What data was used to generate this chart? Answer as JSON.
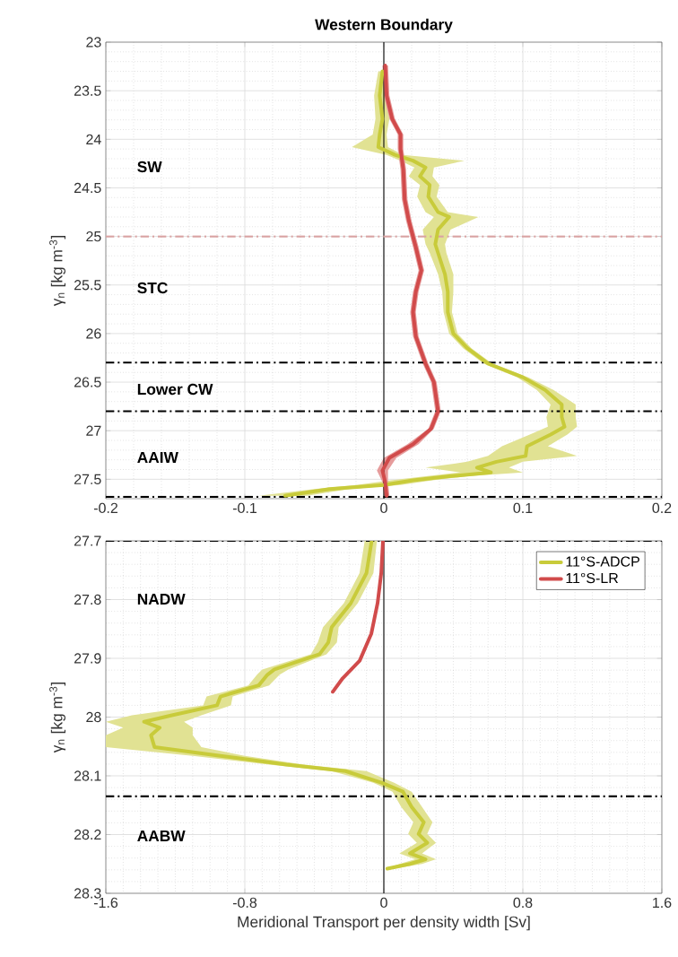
{
  "chart_data": [
    {
      "type": "line",
      "orientation": "horizontal",
      "title": "Western Boundary",
      "ylabel": "γ$_{n}$ [kg m$^{-3}$]",
      "xlim": [
        -0.2,
        0.2
      ],
      "xticks": [
        -0.2,
        -0.1,
        0,
        0.1,
        0.2
      ],
      "ylim": [
        27.7,
        23
      ],
      "yticks": [
        23,
        23.5,
        24,
        24.5,
        25,
        25.5,
        26,
        26.5,
        27,
        27.5
      ],
      "grid": true,
      "series": [
        {
          "color": "#c8cb3a",
          "values": [
            -0.001,
            -0.003,
            -0.001,
            -0.003,
            -0.004,
            0.008,
            0.021,
            0.03,
            0.026,
            0.033,
            0.032,
            0.039,
            0.047,
            0.039,
            0.037,
            0.039,
            0.044,
            0.046,
            0.046,
            0.05,
            0.06,
            0.075,
            0.1,
            0.116,
            0.128,
            0.128,
            0.13,
            0.12,
            0.103,
            0.102,
            0.081,
            0.067,
            0.077,
            0.047,
            0.021,
            0.0,
            -0.039,
            -0.071
          ],
          "x": [
            23.3,
            23.55,
            23.79,
            23.95,
            24.08,
            24.16,
            24.22,
            24.29,
            24.38,
            24.47,
            24.59,
            24.75,
            24.8,
            24.93,
            25.08,
            25.17,
            25.39,
            25.57,
            25.78,
            26.0,
            26.15,
            26.31,
            26.45,
            26.58,
            26.73,
            26.86,
            26.96,
            27.04,
            27.16,
            27.26,
            27.32,
            27.38,
            27.43,
            27.47,
            27.51,
            27.56,
            27.6,
            27.67
          ],
          "lower": [
            -0.004,
            -0.007,
            -0.006,
            -0.008,
            -0.023,
            0.002,
            0.012,
            0.022,
            0.018,
            0.026,
            0.024,
            0.03,
            0.036,
            0.028,
            0.03,
            0.033,
            0.039,
            0.042,
            0.043,
            0.047,
            0.057,
            0.072,
            0.096,
            0.11,
            0.12,
            0.117,
            0.118,
            0.105,
            0.085,
            0.075,
            0.06,
            0.03,
            0.055,
            0.03,
            0.005,
            -0.02,
            -0.05,
            -0.09
          ],
          "upper": [
            0.002,
            0.001,
            0.004,
            0.002,
            0.003,
            0.014,
            0.058,
            0.036,
            0.035,
            0.04,
            0.038,
            0.046,
            0.068,
            0.048,
            0.044,
            0.045,
            0.05,
            0.05,
            0.049,
            0.053,
            0.063,
            0.078,
            0.104,
            0.122,
            0.138,
            0.138,
            0.139,
            0.132,
            0.118,
            0.139,
            0.1,
            0.09,
            0.1,
            0.06,
            0.035,
            0.012,
            -0.025,
            -0.055
          ]
        },
        {
          "color": "#d14b4b",
          "values": [
            0.001,
            0.002,
            0.006,
            0.012,
            0.012,
            0.014,
            0.015,
            0.018,
            0.023,
            0.027,
            0.023,
            0.021,
            0.023,
            0.03,
            0.036,
            0.039,
            0.034,
            0.021,
            0.004,
            -0.001,
            0.001,
            0.002
          ],
          "x": [
            23.24,
            23.55,
            23.79,
            23.95,
            24.1,
            24.31,
            24.62,
            24.84,
            25.11,
            25.35,
            25.57,
            25.78,
            26.03,
            26.31,
            26.5,
            26.8,
            26.98,
            27.14,
            27.28,
            27.41,
            27.53,
            27.67
          ],
          "lower": [
            -0.001,
            0.0,
            0.004,
            0.01,
            0.01,
            0.012,
            0.013,
            0.016,
            0.021,
            0.025,
            0.021,
            0.019,
            0.021,
            0.028,
            0.034,
            0.037,
            0.032,
            0.017,
            0.0,
            -0.005,
            -0.001,
            0.0
          ],
          "upper": [
            0.003,
            0.004,
            0.008,
            0.014,
            0.014,
            0.016,
            0.017,
            0.02,
            0.025,
            0.029,
            0.025,
            0.023,
            0.025,
            0.032,
            0.038,
            0.041,
            0.036,
            0.025,
            0.009,
            0.003,
            0.003,
            0.004
          ]
        }
      ],
      "ref_lines": [
        {
          "axis": "x",
          "value": 0,
          "color": "#000000",
          "line_style": "solid"
        },
        {
          "axis": "y",
          "value": 25,
          "color": "#d9a3a3",
          "line_style": "dashdot"
        },
        {
          "axis": "y",
          "value": 26.3,
          "color": "#000000",
          "line_style": "dashdot"
        },
        {
          "axis": "y",
          "value": 26.8,
          "color": "#000000",
          "line_style": "dashdot"
        },
        {
          "axis": "y",
          "value": 27.68,
          "color": "#000000",
          "line_style": "dashdot"
        }
      ],
      "annotations": [
        "SW",
        "STC",
        "Lower CW",
        "AAIW"
      ]
    },
    {
      "type": "line",
      "orientation": "horizontal",
      "xlabel": "Meridional Transport per density width [Sv]",
      "ylabel": "γ$_{n}$ [kg m$^{-3}$]",
      "xlim": [
        -1.6,
        1.6
      ],
      "xticks": [
        -1.6,
        -0.8,
        0,
        0.8,
        1.6
      ],
      "ylim": [
        28.3,
        27.7
      ],
      "yticks": [
        27.7,
        27.8,
        27.9,
        28,
        28.1,
        28.2,
        28.3
      ],
      "grid": true,
      "legend": "top right",
      "series": [
        {
          "name": "11°S-ADCP",
          "color": "#c8cb3a",
          "values": [
            -0.07,
            -0.1,
            -0.19,
            -0.3,
            -0.32,
            -0.37,
            -0.63,
            -0.67,
            -0.72,
            -0.94,
            -0.96,
            -1.22,
            -1.38,
            -1.29,
            -1.34,
            -1.32,
            -0.94,
            -0.56,
            -0.22,
            -0.01,
            0.11,
            0.16,
            0.23,
            0.2,
            0.25,
            0.15,
            0.24,
            0.15,
            0.02
          ],
          "x": [
            27.7,
            27.755,
            27.806,
            27.847,
            27.873,
            27.893,
            27.919,
            27.928,
            27.946,
            27.965,
            27.98,
            27.997,
            28.008,
            28.018,
            28.031,
            28.051,
            28.066,
            28.081,
            28.092,
            28.112,
            28.127,
            28.153,
            28.179,
            28.199,
            28.214,
            28.232,
            28.242,
            28.25,
            28.258
          ],
          "lower": [
            -0.11,
            -0.14,
            -0.23,
            -0.35,
            -0.38,
            -0.42,
            -0.7,
            -0.73,
            -0.78,
            -1.02,
            -1.04,
            -1.45,
            -1.6,
            -1.5,
            -1.6,
            -1.6,
            -1.1,
            -0.66,
            -0.3,
            -0.06,
            0.05,
            0.1,
            0.17,
            0.14,
            0.19,
            0.09,
            0.18,
            0.09,
            0.01
          ],
          "upper": [
            -0.04,
            -0.06,
            -0.15,
            -0.26,
            -0.27,
            -0.33,
            -0.55,
            -0.6,
            -0.66,
            -0.87,
            -0.88,
            -1.05,
            -1.15,
            -1.1,
            -1.1,
            -1.05,
            -0.8,
            -0.46,
            -0.1,
            0.06,
            0.16,
            0.22,
            0.28,
            0.25,
            0.3,
            0.22,
            0.3,
            0.22,
            0.06
          ]
        },
        {
          "name": "11°S-LR",
          "color": "#d14b4b",
          "values": [
            -0.005,
            -0.015,
            -0.036,
            -0.072,
            -0.139,
            -0.237,
            -0.294
          ],
          "x": [
            27.7,
            27.755,
            27.806,
            27.858,
            27.904,
            27.934,
            27.957
          ]
        }
      ],
      "ref_lines": [
        {
          "axis": "x",
          "value": 0,
          "color": "#000000",
          "line_style": "solid"
        },
        {
          "axis": "y",
          "value": 27.7,
          "color": "#000000",
          "line_style": "dashdot"
        },
        {
          "axis": "y",
          "value": 28.135,
          "color": "#000000",
          "line_style": "dashdot"
        }
      ],
      "annotations": [
        "NADW",
        "AABW"
      ]
    }
  ]
}
